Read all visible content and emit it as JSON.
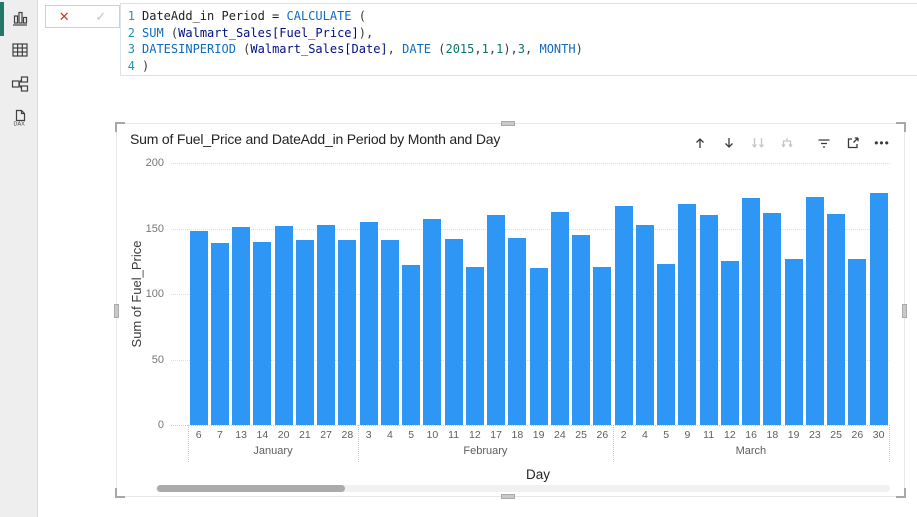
{
  "sidebar": {
    "items": [
      {
        "id": "report-view",
        "active": true
      },
      {
        "id": "table-view",
        "active": false
      },
      {
        "id": "model-view",
        "active": false
      },
      {
        "id": "dax-query-view",
        "active": false,
        "badge": "DAX"
      }
    ],
    "accent_color": "#217868"
  },
  "formula_bar": {
    "cancel_glyph": "✕",
    "commit_glyph": "✓",
    "lines": [
      {
        "num": "1",
        "tokens": [
          {
            "t": "DateAdd_in Period = ",
            "c": "plain"
          },
          {
            "t": "CALCULATE ",
            "c": "kw"
          },
          {
            "t": "(",
            "c": "pun"
          }
        ]
      },
      {
        "num": "2",
        "tokens": [
          {
            "t": "SUM ",
            "c": "kw"
          },
          {
            "t": "(",
            "c": "pun"
          },
          {
            "t": "Walmart_Sales[Fuel_Price]",
            "c": "ref"
          },
          {
            "t": "),",
            "c": "pun"
          }
        ]
      },
      {
        "num": "3",
        "tokens": [
          {
            "t": "DATESINPERIOD ",
            "c": "kw"
          },
          {
            "t": "(",
            "c": "pun"
          },
          {
            "t": "Walmart_Sales[Date]",
            "c": "ref"
          },
          {
            "t": ", ",
            "c": "pun"
          },
          {
            "t": "DATE ",
            "c": "kw"
          },
          {
            "t": "(",
            "c": "pun"
          },
          {
            "t": "2015",
            "c": "num"
          },
          {
            "t": ",",
            "c": "pun"
          },
          {
            "t": "1",
            "c": "num"
          },
          {
            "t": ",",
            "c": "pun"
          },
          {
            "t": "1",
            "c": "num"
          },
          {
            "t": "),",
            "c": "pun"
          },
          {
            "t": "3",
            "c": "num"
          },
          {
            "t": ", ",
            "c": "pun"
          },
          {
            "t": "MONTH",
            "c": "kw"
          },
          {
            "t": ")",
            "c": "pun"
          }
        ]
      },
      {
        "num": "4",
        "tokens": [
          {
            "t": ")",
            "c": "pun"
          }
        ]
      }
    ]
  },
  "visual_toolbar": {
    "icons": [
      "drill-up",
      "drill-down",
      "go-to-next-level",
      "expand-all-down",
      "filters",
      "focus-mode",
      "more-options"
    ]
  },
  "chart_data": {
    "type": "bar",
    "title": "Sum of Fuel_Price and DateAdd_in Period by Month and Day",
    "ylabel": "Sum of Fuel_Price",
    "xlabel": "Day",
    "ylim": [
      0,
      200
    ],
    "yticks": [
      0,
      50,
      100,
      150,
      200
    ],
    "grid": "dotted horizontal",
    "bar_color": "#2e96f5",
    "groups": [
      {
        "month": "January",
        "days": [
          6,
          7,
          13,
          14,
          20,
          21,
          27,
          28
        ],
        "values": [
          148,
          139,
          151,
          140,
          152,
          141,
          153,
          141
        ]
      },
      {
        "month": "February",
        "days": [
          3,
          4,
          5,
          10,
          11,
          12,
          17,
          18,
          19,
          24,
          25,
          26
        ],
        "values": [
          155,
          141,
          122,
          157,
          142,
          121,
          160,
          143,
          120,
          163,
          145,
          121
        ]
      },
      {
        "month": "March",
        "days": [
          2,
          4,
          5,
          9,
          11,
          12,
          16,
          18,
          19,
          23,
          25,
          26,
          30
        ],
        "values": [
          167,
          153,
          123,
          169,
          160,
          125,
          173,
          162,
          127,
          174,
          161,
          127,
          177
        ]
      }
    ]
  }
}
